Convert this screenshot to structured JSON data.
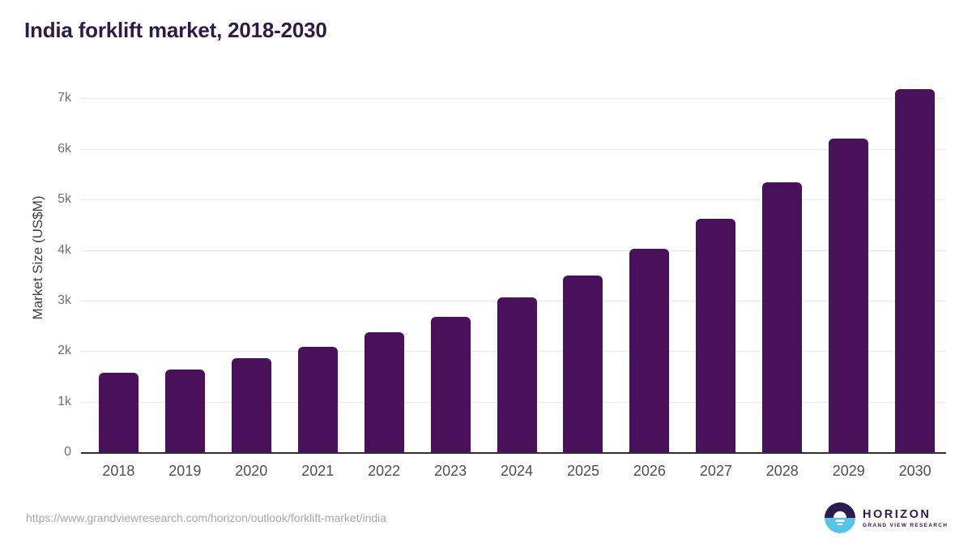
{
  "chart_data": {
    "type": "bar",
    "title": "India forklift market, 2018-2030",
    "categories": [
      "2018",
      "2019",
      "2020",
      "2021",
      "2022",
      "2023",
      "2024",
      "2025",
      "2026",
      "2027",
      "2028",
      "2029",
      "2030"
    ],
    "values": [
      1570,
      1630,
      1860,
      2090,
      2370,
      2680,
      3060,
      3500,
      4020,
      4620,
      5340,
      6200,
      7190
    ],
    "xlabel": "",
    "ylabel": "Market Size (US$M)",
    "ylim": [
      0,
      7500
    ],
    "yticks": [
      0,
      1000,
      2000,
      3000,
      4000,
      5000,
      6000,
      7000
    ],
    "ytick_labels": [
      "0",
      "1k",
      "2k",
      "3k",
      "4k",
      "5k",
      "6k",
      "7k"
    ],
    "grid": "horizontal",
    "legend": "none",
    "bar_color": "#491159"
  },
  "footer": {
    "source_url": "https://www.grandviewresearch.com/horizon/outlook/forklift-market/india",
    "logo": {
      "brand": "HORIZON",
      "subtitle": "GRAND VIEW RESEARCH"
    }
  },
  "colors": {
    "title": "#2F1A47",
    "bar": "#491159",
    "gridline": "#E9E9E9",
    "axis": "#2E2E2E",
    "logo_purple": "#2D1B4E",
    "logo_blue": "#59C2E8"
  }
}
